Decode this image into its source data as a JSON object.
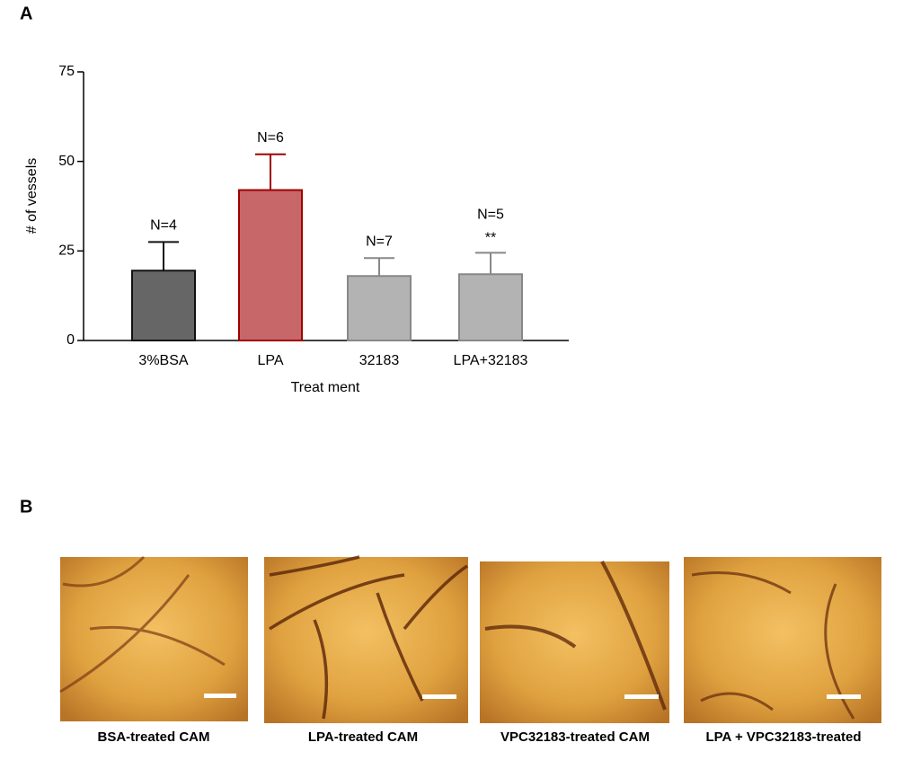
{
  "panel_labels": [
    "A",
    "B"
  ],
  "chart_data": {
    "type": "bar",
    "xlabel": "Treat ment",
    "ylabel": "# of vessels",
    "categories": [
      "3%BSA",
      "LPA",
      "32183",
      "LPA+32183"
    ],
    "values": [
      19.5,
      42,
      18,
      18.5
    ],
    "errors": [
      8,
      10,
      5,
      6
    ],
    "colors": [
      "#666666",
      "#c8676a",
      "#b3b3b3",
      "#b3b3b3"
    ],
    "edge_colors": [
      "#111111",
      "#a00000",
      "#888888",
      "#888888"
    ],
    "bar_labels": [
      "N=4",
      "N=6",
      "N=7",
      "N=5"
    ],
    "significance_labels": [
      null,
      null,
      null,
      "**"
    ],
    "ylim": [
      0,
      75
    ],
    "yticks": [
      0,
      25,
      50,
      75
    ]
  },
  "images": [
    {
      "caption": "BSA-treated CAM"
    },
    {
      "caption": "LPA-treated CAM"
    },
    {
      "caption": "VPC32183-treated CAM"
    },
    {
      "caption": "LPA + VPC32183-treated"
    }
  ]
}
